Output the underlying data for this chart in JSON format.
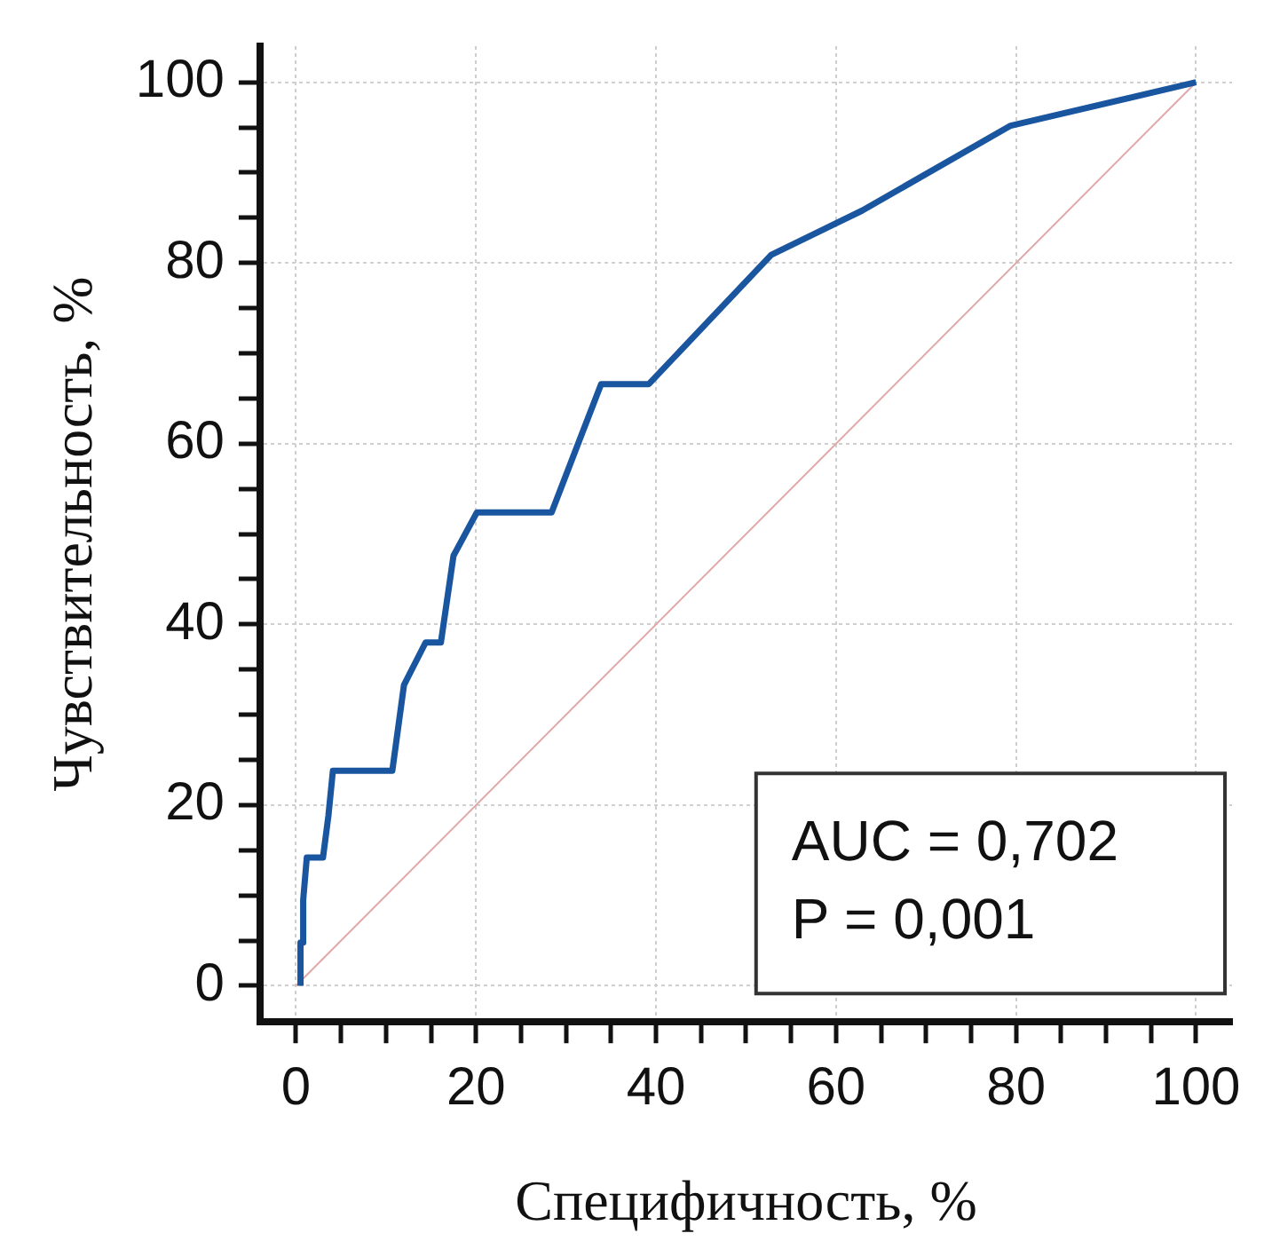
{
  "chart_data": {
    "type": "line",
    "xlabel": "Специфичность, %",
    "ylabel": "Чувствительность, %",
    "xlim": [
      -4,
      104
    ],
    "ylim": [
      -4,
      104
    ],
    "xticks": [
      0,
      {
        "value": 5,
        "label": null
      },
      {
        "value": 10,
        "label": null
      },
      {
        "value": 15,
        "label": null
      },
      20,
      {
        "value": 25,
        "label": null
      },
      {
        "value": 30,
        "label": null
      },
      {
        "value": 35,
        "label": null
      },
      40,
      {
        "value": 45,
        "label": null
      },
      {
        "value": 50,
        "label": null
      },
      {
        "value": 55,
        "label": null
      },
      60,
      {
        "value": 65,
        "label": null
      },
      {
        "value": 70,
        "label": null
      },
      {
        "value": 75,
        "label": null
      },
      80,
      {
        "value": 85,
        "label": null
      },
      {
        "value": 90,
        "label": null
      },
      {
        "value": 95,
        "label": null
      },
      100
    ],
    "yticks": [
      0,
      {
        "value": 5,
        "label": null
      },
      {
        "value": 10,
        "label": null
      },
      {
        "value": 15,
        "label": null
      },
      20,
      {
        "value": 25,
        "label": null
      },
      {
        "value": 30,
        "label": null
      },
      {
        "value": 35,
        "label": null
      },
      40,
      {
        "value": 45,
        "label": null
      },
      {
        "value": 50,
        "label": null
      },
      {
        "value": 55,
        "label": null
      },
      60,
      {
        "value": 65,
        "label": null
      },
      {
        "value": 70,
        "label": null
      },
      {
        "value": 75,
        "label": null
      },
      80,
      {
        "value": 85,
        "label": null
      },
      {
        "value": 90,
        "label": null
      },
      {
        "value": 95,
        "label": null
      },
      100
    ],
    "grid": true,
    "legend": false,
    "marker": "none",
    "line_style": "solid",
    "series": [
      {
        "color": "#1a56a0",
        "x": [
          0.5,
          0.5,
          0.8,
          0.8,
          1.2,
          3.0,
          3.6,
          4.1,
          10.7,
          12.0,
          14.4,
          16.1,
          17.5,
          20.1,
          28.4,
          33.9,
          39.2,
          52.8,
          62.9,
          79.4,
          100
        ],
        "values": [
          0,
          4.8,
          4.8,
          9.5,
          14.2,
          14.2,
          18.8,
          23.8,
          23.8,
          33.3,
          38,
          38,
          47.6,
          52.4,
          52.4,
          66.6,
          66.6,
          80.9,
          85.8,
          95.2,
          100
        ]
      },
      {
        "color": "#e0a8a8",
        "x": [
          0,
          100
        ],
        "values": [
          0,
          100
        ]
      }
    ],
    "annotations": [
      "AUC = 0,702",
      "P = 0,001"
    ]
  }
}
